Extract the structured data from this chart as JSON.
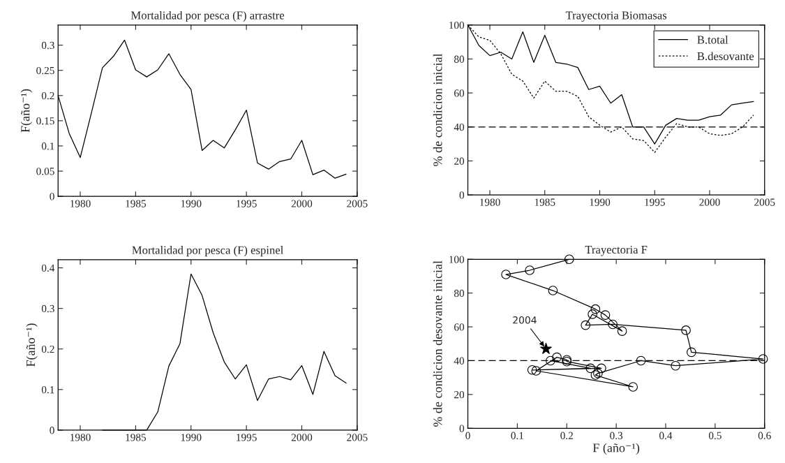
{
  "chart_data": [
    {
      "type": "line",
      "title": "Mortalidad por pesca (F) arrastre",
      "ylabel": "F(año⁻¹)",
      "x": [
        1978,
        1979,
        1980,
        1981,
        1982,
        1983,
        1984,
        1985,
        1986,
        1987,
        1988,
        1989,
        1990,
        1991,
        1992,
        1993,
        1994,
        1995,
        1996,
        1997,
        1998,
        1999,
        2000,
        2001,
        2002,
        2003,
        2004
      ],
      "series": [
        {
          "color": "#000000",
          "values": [
            0.2,
            0.125,
            0.077,
            0.165,
            0.255,
            0.278,
            0.31,
            0.251,
            0.237,
            0.251,
            0.283,
            0.242,
            0.212,
            0.091,
            0.111,
            0.096,
            0.132,
            0.171,
            0.066,
            0.054,
            0.069,
            0.074,
            0.111,
            0.043,
            0.052,
            0.036,
            0.044
          ]
        }
      ],
      "xlim": [
        1978,
        2005
      ],
      "xticks": [
        1980,
        1985,
        1990,
        1995,
        2000,
        2005
      ],
      "ylim": [
        0,
        0.34
      ],
      "yticks": [
        0,
        0.05,
        0.1,
        0.15,
        0.2,
        0.25,
        0.3
      ]
    },
    {
      "type": "line",
      "title": "Trayectoria Biomasas",
      "ylabel": "% de condicion inicial",
      "x": [
        1978,
        1979,
        1980,
        1981,
        1982,
        1983,
        1984,
        1985,
        1986,
        1987,
        1988,
        1989,
        1990,
        1991,
        1992,
        1993,
        1994,
        1995,
        1996,
        1997,
        1998,
        1999,
        2000,
        2001,
        2002,
        2003,
        2004
      ],
      "series": [
        {
          "name": "B.total",
          "color": "#000000",
          "line_style": "solid",
          "values": [
            100,
            88,
            82,
            84,
            80,
            96,
            78,
            94,
            78,
            77,
            75,
            62,
            64,
            54,
            59,
            40,
            40,
            30,
            41,
            45,
            44,
            44,
            46,
            47,
            53,
            54,
            55
          ]
        },
        {
          "name": "B.desovante",
          "color": "#000000",
          "line_style": "dotted",
          "values": [
            100,
            93,
            91,
            83,
            71,
            67,
            57,
            67,
            61,
            61,
            58,
            46,
            41,
            37,
            40,
            33,
            32,
            25,
            34,
            42,
            40,
            40,
            36,
            35,
            36,
            40,
            47
          ]
        }
      ],
      "ref_lines": [
        {
          "axis": "y",
          "value": 40,
          "color": "#000000",
          "line_style": "dashed"
        }
      ],
      "legend": "top right",
      "xlim": [
        1978,
        2005
      ],
      "xticks": [
        1980,
        1985,
        1990,
        1995,
        2000,
        2005
      ],
      "ylim": [
        0,
        100
      ],
      "yticks": [
        0,
        20,
        40,
        60,
        80,
        100
      ]
    },
    {
      "type": "line",
      "title": "Mortalidad por pesca (F) espinel",
      "ylabel": "F(año⁻¹)",
      "x": [
        1982,
        1983,
        1984,
        1985,
        1986,
        1987,
        1988,
        1989,
        1990,
        1991,
        1992,
        1993,
        1994,
        1995,
        1996,
        1997,
        1998,
        1999,
        2000,
        2001,
        2002,
        2003,
        2004
      ],
      "series": [
        {
          "color": "#000000",
          "values": [
            0,
            0,
            0,
            0,
            0,
            0.045,
            0.158,
            0.213,
            0.385,
            0.332,
            0.24,
            0.168,
            0.126,
            0.161,
            0.073,
            0.126,
            0.132,
            0.124,
            0.159,
            0.088,
            0.194,
            0.134,
            0.116
          ]
        }
      ],
      "xlim": [
        1978,
        2005
      ],
      "xticks": [
        1980,
        1985,
        1990,
        1995,
        2000,
        2005
      ],
      "ylim": [
        0,
        0.42
      ],
      "yticks": [
        0,
        0.1,
        0.2,
        0.3,
        0.4
      ]
    },
    {
      "type": "line",
      "title": "Trayectoria F",
      "xlabel": "F (año⁻¹)",
      "ylabel": "% de condicion desovante inicial",
      "series": [
        {
          "color": "#000000",
          "marker": "circle",
          "x": [
            0.205,
            0.125,
            0.077,
            0.172,
            0.258,
            0.278,
            0.312,
            0.252,
            0.238,
            0.293,
            0.441,
            0.452,
            0.597,
            0.42,
            0.35,
            0.263,
            0.258,
            0.334,
            0.138,
            0.18,
            0.2,
            0.2,
            0.27,
            0.13,
            0.248,
            0.167
          ],
          "values": [
            100,
            93.5,
            91,
            81.5,
            70.5,
            67,
            57.5,
            67.5,
            61,
            61.5,
            58,
            45,
            41,
            37,
            40,
            32.5,
            31.5,
            24.5,
            34,
            42,
            40.5,
            39.5,
            35.5,
            34.5,
            35.5,
            40
          ]
        },
        {
          "type": "scatter",
          "color": "#000000",
          "marker": "star",
          "x": [
            0.158
          ],
          "values": [
            47
          ]
        }
      ],
      "ref_lines": [
        {
          "axis": "y",
          "value": 40,
          "color": "#000000",
          "line_style": "dashed"
        }
      ],
      "annotations": [
        {
          "text": "2004",
          "x": 0.158,
          "y": 47
        }
      ],
      "xlim": [
        0,
        0.6
      ],
      "xticks": [
        0,
        0.1,
        0.2,
        0.3,
        0.4,
        0.5,
        0.6
      ],
      "ylim": [
        0,
        100
      ],
      "yticks": [
        0,
        20,
        40,
        60,
        80,
        100
      ]
    }
  ]
}
